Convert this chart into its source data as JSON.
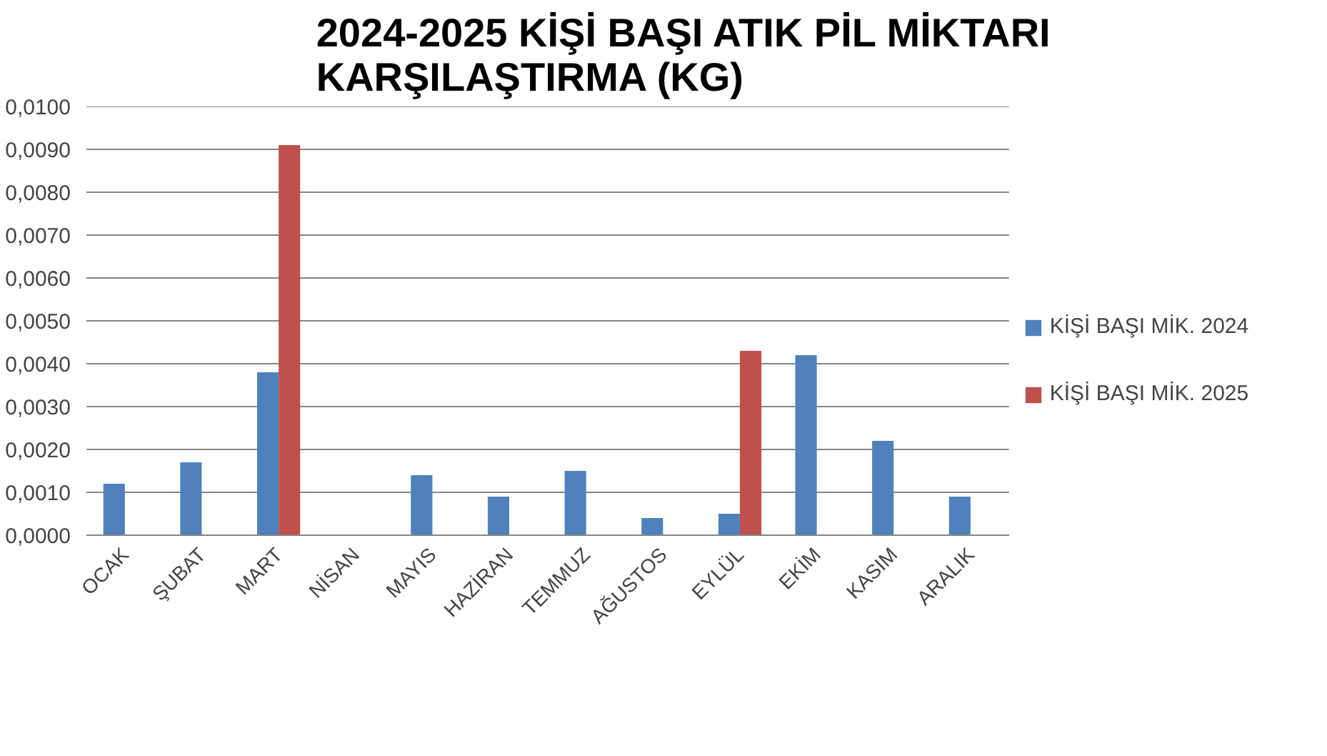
{
  "chart_data": {
    "type": "bar",
    "title": "2024-2025 KİŞİ BAŞI ATIK PİL  MİKTARI KARŞILAŞTIRMA (KG)",
    "categories": [
      "OCAK",
      "ŞUBAT",
      "MART",
      "NİSAN",
      "MAYIS",
      "HAZİRAN",
      "TEMMUZ",
      "AĞUSTOS",
      "EYLÜL",
      "EKİM",
      "KASIM",
      "ARALIK"
    ],
    "series": [
      {
        "name": "KİŞİ BAŞI MİK. 2024",
        "color": "#4f81bd",
        "values": [
          0.0012,
          0.0017,
          0.0038,
          null,
          0.0014,
          0.0009,
          0.0015,
          0.0004,
          0.0005,
          0.0042,
          0.0022,
          0.0009
        ]
      },
      {
        "name": "KİŞİ BAŞI MİK. 2025",
        "color": "#c0504d",
        "values": [
          null,
          null,
          0.0091,
          null,
          null,
          null,
          null,
          null,
          0.0043,
          null,
          null,
          null
        ]
      }
    ],
    "ylim": [
      0,
      0.01
    ],
    "yticks": [
      {
        "value": 0,
        "label": "0,0000"
      },
      {
        "value": 0.001,
        "label": "0,0010"
      },
      {
        "value": 0.002,
        "label": "0,0020"
      },
      {
        "value": 0.003,
        "label": "0,0030"
      },
      {
        "value": 0.004,
        "label": "0,0040"
      },
      {
        "value": 0.005,
        "label": "0,0050"
      },
      {
        "value": 0.006,
        "label": "0,0060"
      },
      {
        "value": 0.007,
        "label": "0,0070"
      },
      {
        "value": 0.008,
        "label": "0,0080"
      },
      {
        "value": 0.009,
        "label": "0,0090"
      },
      {
        "value": 0.01,
        "label": "0,0100"
      }
    ],
    "grid": "y",
    "legend": "right"
  }
}
